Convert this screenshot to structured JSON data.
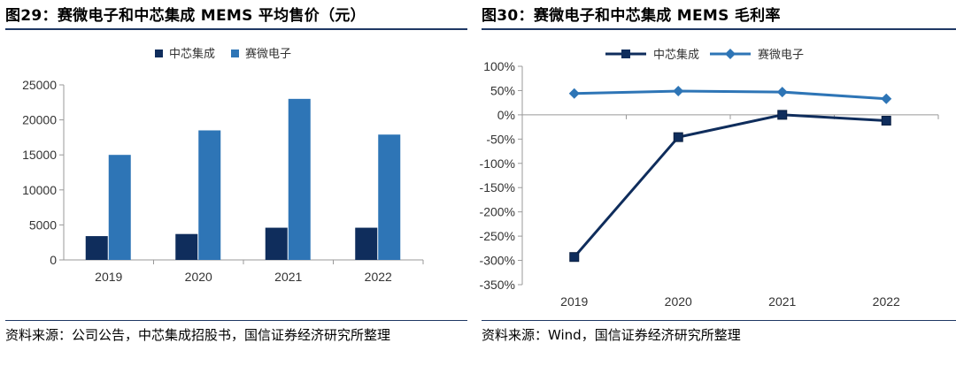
{
  "left": {
    "title": "图29：赛微电子和中芯集成 MEMS 平均售价（元）",
    "source": "资料来源：公司公告，中芯集成招股书，国信证券经济研究所整理",
    "chart_data": {
      "type": "bar",
      "categories": [
        "2019",
        "2020",
        "2021",
        "2022"
      ],
      "series": [
        {
          "name": "中芯集成",
          "values": [
            3400,
            3700,
            4600,
            4600
          ],
          "color": "#0f2d5c"
        },
        {
          "name": "赛微电子",
          "values": [
            15000,
            18500,
            23000,
            17900
          ],
          "color": "#2e75b6"
        }
      ],
      "ylim": [
        0,
        25000
      ],
      "yticks": [
        "0",
        "5000",
        "10000",
        "15000",
        "20000",
        "25000"
      ],
      "legend": "top-center",
      "grid": false
    }
  },
  "right": {
    "title": "图30：赛微电子和中芯集成 MEMS 毛利率",
    "source": "资料来源：Wind，国信证券经济研究所整理",
    "chart_data": {
      "type": "line",
      "categories": [
        "2019",
        "2020",
        "2021",
        "2022"
      ],
      "series": [
        {
          "name": "中芯集成",
          "values": [
            -293,
            -46,
            0,
            -12
          ],
          "color": "#0f2d5c",
          "marker": "square"
        },
        {
          "name": "赛微电子",
          "values": [
            44,
            49,
            47,
            33
          ],
          "color": "#2e75b6",
          "marker": "diamond"
        }
      ],
      "ylim": [
        -350,
        100
      ],
      "yticks": [
        "-350%",
        "-300%",
        "-250%",
        "-200%",
        "-150%",
        "-100%",
        "-50%",
        "0%",
        "50%",
        "100%"
      ],
      "legend": "top-center",
      "grid": false
    }
  }
}
